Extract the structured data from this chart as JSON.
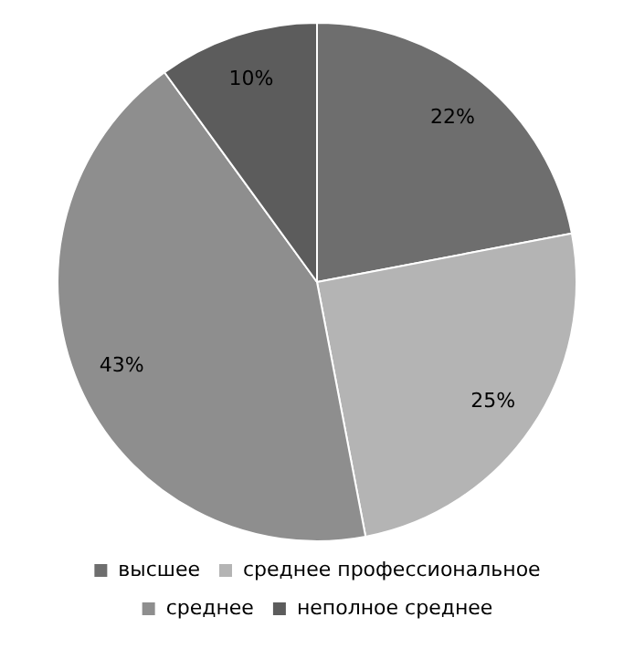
{
  "chart_data": {
    "type": "pie",
    "categories": [
      "высшее",
      "среднее профессиональное",
      "среднее",
      "неполное среднее"
    ],
    "values": [
      22,
      25,
      43,
      10
    ],
    "colors": [
      "#6e6e6e",
      "#b4b4b4",
      "#8e8e8e",
      "#5c5c5c"
    ],
    "value_labels": [
      "22%",
      "25%",
      "43%",
      "10%"
    ],
    "legend": "bottom"
  }
}
